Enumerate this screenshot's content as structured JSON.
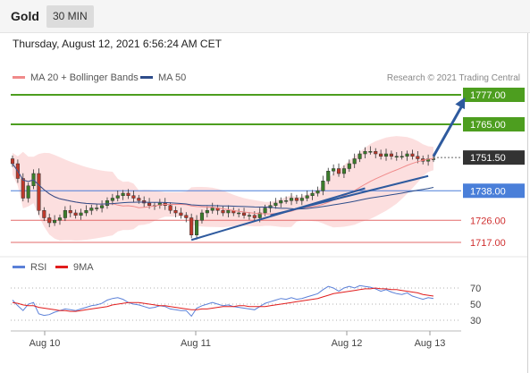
{
  "header": {
    "instrument": "Gold",
    "timeframe": "30 MIN"
  },
  "timestamp": "Thursday, August 12, 2021 6:56:24 AM CET",
  "credit": "Research © 2021 Trading Central",
  "colors": {
    "resistance": "#4d9e1f",
    "support_blue": "#4a7fd9",
    "support_red": "#e36a6a",
    "current": "#333333",
    "bollinger_fill": "#fbd9d9",
    "ma20": "#f08a8a",
    "ma50": "#2e4d8a",
    "trend": "#2e5a9e",
    "rsi": "#5b80d8",
    "rsi_ma": "#e11d1d",
    "candle_up": "#3a7d2a",
    "candle_down": "#c0392b"
  },
  "chart_data": [
    {
      "type": "candlestick",
      "title": "",
      "legend": [
        {
          "name": "MA 20 + Bollinger Bands",
          "color": "#f08a8a"
        },
        {
          "name": "MA 50",
          "color": "#2e4d8a"
        }
      ],
      "legend_position": "top-left",
      "x_ticks": [
        "Aug 10",
        "Aug 11",
        "Aug 12",
        "Aug 13"
      ],
      "ylim": [
        1712,
        1782
      ],
      "levels": [
        {
          "label": "1777.00",
          "value": 1777.0,
          "kind": "resistance"
        },
        {
          "label": "1765.00",
          "value": 1765.0,
          "kind": "resistance"
        },
        {
          "label": "1751.50",
          "value": 1751.5,
          "kind": "current"
        },
        {
          "label": "1738.00",
          "value": 1738.0,
          "kind": "support_blue"
        },
        {
          "label": "1726.00",
          "value": 1726.0,
          "kind": "support_red"
        },
        {
          "label": "1717.00",
          "value": 1717.0,
          "kind": "support_red"
        }
      ],
      "close": [
        1749,
        1743,
        1735,
        1740,
        1745,
        1730,
        1727,
        1725,
        1726,
        1727,
        1730,
        1729,
        1728,
        1729,
        1730,
        1731,
        1731,
        1732,
        1734,
        1735,
        1736,
        1737,
        1736,
        1735,
        1734,
        1733,
        1732,
        1732,
        1733,
        1732,
        1730,
        1729,
        1728,
        1727,
        1720,
        1726,
        1729,
        1730,
        1731,
        1730,
        1729,
        1730,
        1729,
        1729,
        1728,
        1728,
        1727,
        1729,
        1731,
        1732,
        1733,
        1734,
        1734,
        1735,
        1734,
        1735,
        1736,
        1737,
        1738,
        1742,
        1746,
        1747,
        1745,
        1747,
        1749,
        1751,
        1753,
        1754,
        1754,
        1753,
        1752,
        1753,
        1752,
        1752,
        1752,
        1753,
        1752,
        1751,
        1750,
        1751,
        1751
      ],
      "trend_lines": [
        {
          "from": [
            34,
            1718
          ],
          "to": [
            67,
            1739
          ]
        },
        {
          "from": [
            49,
            1728
          ],
          "to": [
            79,
            1744
          ]
        }
      ],
      "projection": {
        "from": [
          80,
          1752
        ],
        "to": [
          86,
          1776
        ]
      }
    },
    {
      "type": "line",
      "title": "",
      "legend": [
        {
          "name": "RSI",
          "color": "#5b80d8"
        },
        {
          "name": "9MA",
          "color": "#e11d1d"
        }
      ],
      "legend_position": "top-left",
      "y_ticks": [
        70,
        50,
        30
      ],
      "ylim": [
        20,
        80
      ],
      "series": [
        {
          "name": "RSI",
          "values": [
            55,
            48,
            42,
            50,
            52,
            38,
            36,
            37,
            40,
            42,
            44,
            43,
            42,
            44,
            46,
            48,
            49,
            51,
            55,
            57,
            58,
            56,
            52,
            50,
            49,
            47,
            45,
            46,
            48,
            47,
            44,
            43,
            42,
            42,
            35,
            45,
            48,
            50,
            52,
            50,
            48,
            49,
            47,
            46,
            45,
            44,
            43,
            47,
            51,
            53,
            55,
            57,
            56,
            58,
            56,
            57,
            59,
            61,
            63,
            68,
            72,
            70,
            66,
            70,
            72,
            70,
            73,
            72,
            71,
            69,
            66,
            68,
            65,
            63,
            62,
            64,
            60,
            58,
            56,
            58,
            57
          ]
        },
        {
          "name": "9MA",
          "values": [
            52,
            51,
            49,
            48,
            48,
            46,
            45,
            44,
            43,
            42,
            42,
            41,
            41,
            42,
            43,
            44,
            45,
            46,
            47,
            49,
            50,
            51,
            52,
            52,
            52,
            51,
            50,
            49,
            48,
            48,
            47,
            46,
            45,
            44,
            43,
            43,
            44,
            44,
            45,
            46,
            47,
            47,
            47,
            48,
            48,
            47,
            47,
            47,
            47,
            48,
            49,
            50,
            51,
            52,
            53,
            54,
            55,
            56,
            57,
            59,
            61,
            63,
            64,
            65,
            66,
            67,
            68,
            69,
            69,
            70,
            69,
            69,
            68,
            68,
            67,
            66,
            65,
            64,
            62,
            61,
            60
          ]
        }
      ]
    }
  ]
}
